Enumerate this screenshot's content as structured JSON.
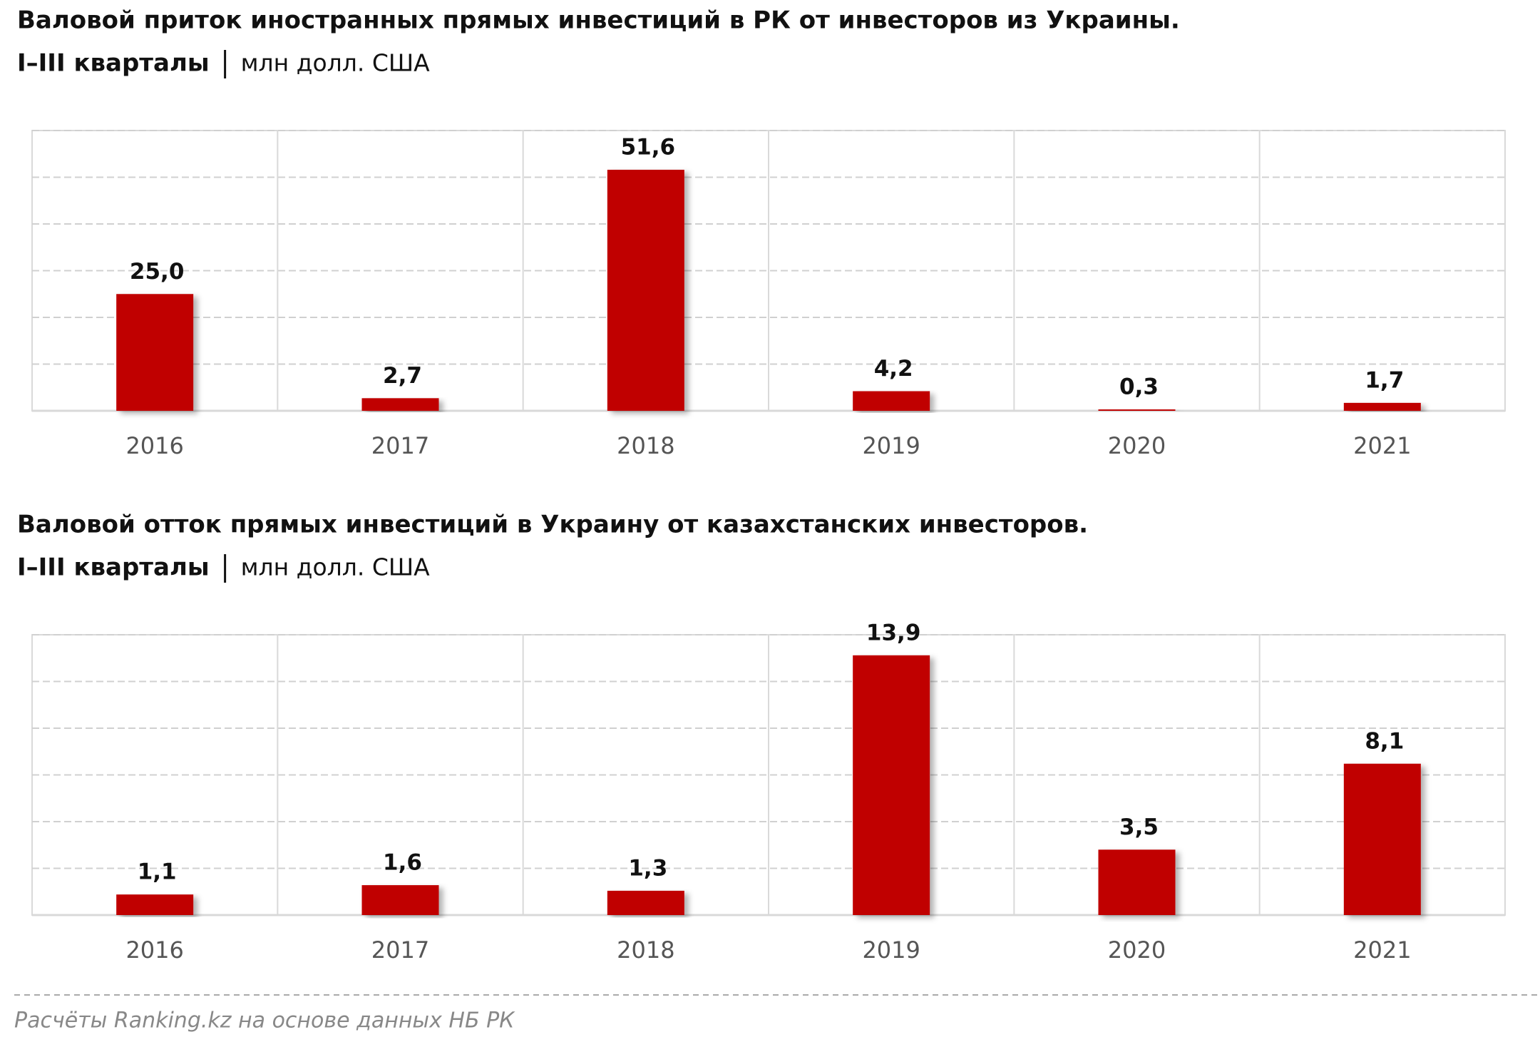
{
  "chart_data": [
    {
      "type": "bar",
      "title": "Валовой приток иностранных прямых инвестиций в РК от инвесторов из Украины.",
      "subtitle": "I–III кварталы",
      "unit": "млн долл. США",
      "categories": [
        "2016",
        "2017",
        "2018",
        "2019",
        "2020",
        "2021"
      ],
      "values": [
        25.0,
        2.7,
        51.6,
        4.2,
        0.3,
        1.7
      ],
      "value_labels": [
        "25,0",
        "2,7",
        "51,6",
        "4,2",
        "0,3",
        "1,7"
      ],
      "color": "#c00000",
      "ylim": [
        0,
        60
      ],
      "yticks": [
        0,
        10,
        20,
        30,
        40,
        50,
        60
      ],
      "grid": true
    },
    {
      "type": "bar",
      "title": "Валовой отток прямых инвестиций в Украину от казахстанских инвесторов.",
      "subtitle": "I–III кварталы",
      "unit": "млн долл. США",
      "categories": [
        "2016",
        "2017",
        "2018",
        "2019",
        "2020",
        "2021"
      ],
      "values": [
        1.1,
        1.6,
        1.3,
        13.9,
        3.5,
        8.1
      ],
      "value_labels": [
        "1,1",
        "1,6",
        "1,3",
        "13,9",
        "3,5",
        "8,1"
      ],
      "color": "#c00000",
      "ylim": [
        0,
        15
      ],
      "yticks": [
        0,
        2.5,
        5,
        7.5,
        10,
        12.5,
        15
      ],
      "grid": true
    }
  ],
  "source": "Расчёты Ranking.kz на основе данных НБ РК"
}
